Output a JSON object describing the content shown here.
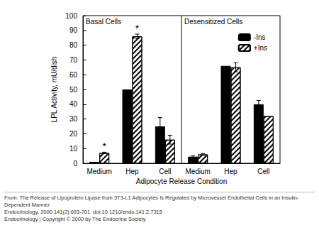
{
  "chart_data": {
    "type": "bar",
    "categories": [
      "Medium",
      "Hep",
      "Cell",
      "Medium",
      "Hep",
      "Cell"
    ],
    "panels": [
      "Basal Cells",
      "Desensitized Cells"
    ],
    "x_label": "Adipocyte Release Condition",
    "y_label": "LPL Activity, mU/dish",
    "ylim": [
      0,
      100
    ],
    "yticks": [
      0,
      10,
      20,
      30,
      40,
      50,
      60,
      70,
      80,
      90,
      100
    ],
    "grid": false,
    "legend": "upper right",
    "series": [
      {
        "name": "-Ins",
        "color": "#000000",
        "marker": "solid",
        "values": [
          1,
          50,
          25,
          4.5,
          66,
          40
        ],
        "errors": [
          null,
          null,
          6,
          0.5,
          null,
          2.5
        ],
        "significance": [
          null,
          null,
          null,
          null,
          null,
          null
        ]
      },
      {
        "name": "+Ins",
        "color": "#ffffff",
        "marker": "hatched",
        "values": [
          7,
          86,
          16,
          6,
          65,
          32
        ],
        "errors": [
          0.5,
          1.5,
          3,
          0.5,
          3,
          null
        ],
        "significance": [
          "*",
          "*",
          null,
          null,
          null,
          null
        ]
      }
    ]
  },
  "source": {
    "lines": [
      "From: The Release of Lipoprotein Lipase from 3T3-L1 Adipocytes Is Regulated by Microvessel Endothelial Cells in an Insulin-Dependent Manner",
      "Endocrinology. 2000;141(2):693-701. doi:10.1210/endo.141.2.7315",
      "Endocrinology | Copyright © 2000 by The Endocrine Society"
    ]
  }
}
